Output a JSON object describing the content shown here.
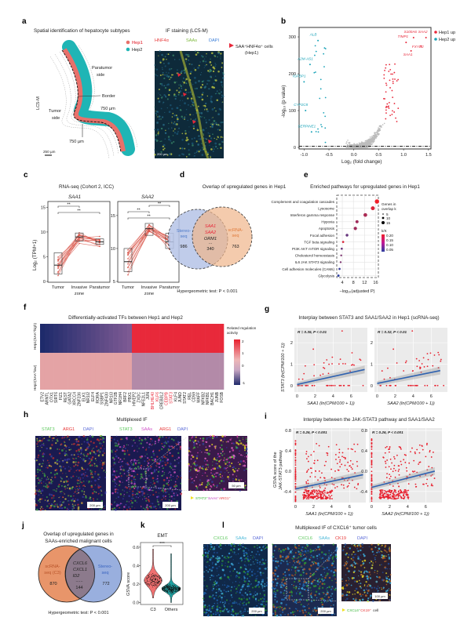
{
  "a": {
    "label": "a",
    "title": "Spatial identification of hepatocyte subtypes",
    "legend": [
      "Hep1",
      "Hep2"
    ],
    "paratumor": [
      "Paratumor",
      "side"
    ],
    "border": "Border",
    "tumor": [
      "Tumor",
      "side"
    ],
    "dist1": "750 µm",
    "dist2": "750 µm",
    "sample": "LC5-M",
    "scale": "250 µm",
    "if_title": "IF staining (LC5-M)",
    "channels": [
      "HNF4α",
      "SAAs",
      "DAPI"
    ],
    "arrow_legend": [
      "SAA⁺HNF4α⁺ cells",
      "(Hep1)"
    ],
    "if_scale": "200 µm",
    "colors": {
      "hep1": "#e8706a",
      "hep2": "#1fb5b5"
    }
  },
  "b": {
    "label": "b",
    "ylabel": "-log₁₀ (p value)",
    "xlabel": "Log₂ (fold change)",
    "legend": [
      "Hep1 up",
      "Hep2 up"
    ],
    "xticks": [
      "-1.0",
      "-0.5",
      "0.0",
      "0.5",
      "1.0",
      "1.5"
    ],
    "yticks": [
      "0",
      "100",
      "200",
      "300"
    ],
    "colors": {
      "up1": "#e8283a",
      "up2": "#1aa3b8",
      "ns": "#bdbdbd"
    }
  },
  "c": {
    "label": "c",
    "title": "RNA-seq (Cohort 2, ICC)",
    "ylabel": "Log₂ (TPM+1)",
    "genes": [
      "SAA1",
      "SAA2"
    ],
    "xcats": [
      "Tumor",
      "Invasive",
      "Paratumor"
    ],
    "zone": "zone",
    "sig": "**",
    "yticks1": [
      "0",
      "5",
      "10",
      "15"
    ],
    "yticks2": [
      "5",
      "10",
      "15"
    ]
  },
  "d": {
    "label": "d",
    "title": "Overlap of upregulated genes in Hep1",
    "left": [
      "Stereo-",
      "seq"
    ],
    "left_n": "986",
    "right": [
      "scRNA-",
      "seq"
    ],
    "right_n": "763",
    "genes": [
      "SAA1",
      "SAA2",
      "ORM1",
      "..."
    ],
    "overlap_n": "340",
    "test": "Hypergeometric test: P < 0.001"
  },
  "e": {
    "label": "e",
    "title": "Enriched pathways for upregulated genes in Hep1",
    "xlabel": "−log₁₀(adjusted P)",
    "xticks": [
      "4",
      "8",
      "12",
      "16"
    ],
    "size_legend_title": [
      "Genes in",
      "overlap k"
    ],
    "size_legend": [
      "5",
      "10",
      "15"
    ],
    "color_legend_title": "k/K",
    "color_legend": [
      "0.20",
      "0.15",
      "0.10",
      "0.05"
    ]
  },
  "f": {
    "label": "f",
    "title": "Differentially-activated TFs between Hep1 and Hep2",
    "rows": [
      "Hep1(SAA^high)",
      "Hep2(SAA^low)"
    ],
    "legend_title": [
      "Related regulation",
      "activity"
    ],
    "legend_ticks": [
      "2",
      "1",
      "0",
      "-1"
    ]
  },
  "g": {
    "label": "g",
    "title": "Interplay between STAT3 and SAA1/SAA2 in Hep1 (scRNA-seq)",
    "ylabel": "STAT3 (ln(CPM/100 + 1))",
    "xlabels": [
      "SAA1 (ln(CPM/100 + 1))",
      "SAA2 (ln(CPM/100 + 1))"
    ],
    "stats": [
      "R = 0.35, P < 0.01",
      "R = 0.32, P < 0.01"
    ],
    "yticks": [
      "0",
      "1",
      "2"
    ],
    "xticks": [
      "0",
      "2",
      "4",
      "6"
    ]
  },
  "h": {
    "label": "h",
    "title": "Multiplexed IF",
    "channels1": [
      "STAT3",
      "ARG1",
      "DAPI"
    ],
    "channels2": [
      "STAT3",
      "SAAs",
      "ARG1",
      "DAPI"
    ],
    "scale1": "200 µm",
    "scale2": "200 µm",
    "scale3": "50 µm",
    "legend": [
      "STAT3⁺",
      "SAAs⁺",
      "ARG1⁺"
    ]
  },
  "i": {
    "label": "i",
    "title": "Interplay between the JAK-STAT3 pathway and SAA1/SAA2",
    "ylabel": [
      "GSVA score of the",
      "JAK-STAT3 pathway"
    ],
    "xlabels": [
      "SAA1 (ln(CPM/100 + 1))",
      "SAA2 (ln(CPM/100 + 1))"
    ],
    "stats": [
      "R = 0.26, P < 0.001",
      "R = 0.26, P < 0.001"
    ],
    "yticks": [
      "-0.4",
      "0.0",
      "0.4",
      "0.8"
    ],
    "xticks": [
      "0",
      "2",
      "4",
      "6"
    ]
  },
  "j": {
    "label": "j",
    "title": [
      "Overlap of upregulated genes in",
      "SAAs-enriched malignant cells"
    ],
    "left": [
      "scRNA-",
      "seq (C3)"
    ],
    "left_n": "870",
    "right": [
      "Stereo-",
      "seq"
    ],
    "right_n": "772",
    "genes": [
      "CXCL6",
      "CXCL1",
      "ID2",
      "......"
    ],
    "overlap_n": "144",
    "test": "Hypergeometric test: P < 0.001"
  },
  "k": {
    "label": "k",
    "title": "EMT",
    "ylabel": "GSVA score",
    "xcats": [
      "C3",
      "Others"
    ],
    "yticks": [
      "0.0",
      "0.2",
      "0.4",
      "0.6"
    ],
    "sig": "***"
  },
  "l": {
    "label": "l",
    "title": "Multiplexed IF of CXCL6⁺ tumor cells",
    "channels1": [
      "CXCL6",
      "SAAs",
      "DAPI"
    ],
    "channels2": [
      "CXCL6",
      "SAAs",
      "CK19",
      "DAPI"
    ],
    "scale1": "200 µm",
    "scale2": "200 µm",
    "scale3": "100 µm",
    "legend": [
      "CXCL6⁺",
      "CK19⁺",
      "cell"
    ]
  },
  "chart_data": [
    {
      "panel": "b",
      "type": "scatter",
      "xlim": [
        -1.1,
        1.55
      ],
      "ylim": [
        0,
        320
      ],
      "threshold_y": 0,
      "labeled_points": [
        {
          "gene": "ALB",
          "x": -0.72,
          "y": 290,
          "group": "Hep2 up"
        },
        {
          "gene": "A2M-AS1",
          "x": -0.88,
          "y": 225,
          "group": "Hep2 up"
        },
        {
          "gene": "IGFBP1",
          "x": -1.0,
          "y": 178,
          "group": "Hep2 up"
        },
        {
          "gene": "CYP2C8",
          "x": -0.97,
          "y": 100,
          "group": "Hep2 up"
        },
        {
          "gene": "SERPINE1",
          "x": -0.85,
          "y": 42,
          "group": "Hep2 up"
        },
        {
          "gene": "TIMP1",
          "x": 1.05,
          "y": 285,
          "group": "Hep1 up"
        },
        {
          "gene": "S100A6",
          "x": 1.2,
          "y": 298,
          "group": "Hep1 up"
        },
        {
          "gene": "SAA2",
          "x": 1.45,
          "y": 298,
          "group": "Hep1 up"
        },
        {
          "gene": "SAA1",
          "x": 1.15,
          "y": 262,
          "group": "Hep1 up"
        },
        {
          "gene": "FXYD2",
          "x": 1.35,
          "y": 275,
          "group": "Hep1 up"
        }
      ]
    },
    {
      "panel": "c",
      "type": "box",
      "series": [
        {
          "gene": "SAA1",
          "medians": [
            3.3,
            9.0,
            8.0
          ],
          "q1": [
            1.5,
            8.2,
            7.5
          ],
          "q3": [
            5.8,
            9.8,
            8.6
          ]
        },
        {
          "gene": "SAA2",
          "medians": [
            8.0,
            13.0,
            11.0
          ],
          "q1": [
            6.5,
            12.0,
            10.0
          ],
          "q3": [
            10.0,
            13.8,
            12.3
          ]
        }
      ]
    },
    {
      "panel": "e",
      "type": "dot",
      "categories": [
        "Complement and coagulation cascades",
        "Lysosome",
        "Interferon gamma response",
        "Hypoxia",
        "Apoptosis",
        "Focal adhesion",
        "TGF beta signaling",
        "PI3K AKT mTOR signaling",
        "Cholesterol homeostasis",
        "IL6 JAK STAT3 signaling",
        "Cell adhesion molecules (CAMs)",
        "Glycolysis"
      ],
      "neglog10_padj": [
        16.5,
        15,
        12.3,
        9.3,
        8.7,
        5.7,
        4.3,
        3.8,
        3.6,
        3.4,
        3.0,
        2.6
      ],
      "k": [
        15,
        13,
        12,
        9,
        10,
        7,
        4,
        4,
        3,
        3,
        4,
        5
      ],
      "kK": [
        0.22,
        0.2,
        0.16,
        0.15,
        0.15,
        0.1,
        0.2,
        0.1,
        0.12,
        0.12,
        0.06,
        0.05
      ],
      "xlim": [
        2,
        17
      ]
    },
    {
      "panel": "f",
      "type": "heatmap",
      "columns": [
        "ETV2",
        "ARNTL",
        "OTX1",
        "SIRT6",
        "FIZ1",
        "REST",
        "GATA2",
        "XRCC4",
        "ZNF236",
        "ELK1",
        "NR1I2",
        "ELF4",
        "RORA",
        "SSBP1",
        "ZNF430",
        "NR1I3",
        "GTF2B",
        "NR1H4",
        "BRF2",
        "PBX1",
        "HIVEP2",
        "ZXDC",
        "NFE2L1",
        "JUN",
        "BHLHE40",
        "KLF6",
        "CREB3L2",
        "CEBPB",
        "STAT3",
        "KLF4",
        "JUND",
        "STAT2",
        "REL",
        "CD59",
        "MAFF",
        "NFKB2",
        "NFKB1",
        "BACH1",
        "JUNB",
        "FOSB"
      ],
      "highlighted": [
        "BHLHE40",
        "KLF6",
        "CEBPB",
        "STAT3"
      ],
      "hep1_left_range": [
        -1,
        -0.2
      ],
      "hep1_right": 2,
      "hep2_left": 0.9,
      "hep2_right": -0.1,
      "color_range": [
        -1,
        2
      ]
    },
    {
      "panel": "g",
      "type": "scatter",
      "fits": [
        {
          "x": [
            0,
            7.5
          ],
          "y": [
            0.05,
            0.75
          ]
        },
        {
          "x": [
            0,
            7
          ],
          "y": [
            0.1,
            0.7
          ]
        }
      ],
      "xlim": [
        -0.3,
        7.8
      ],
      "ylim": [
        -0.3,
        2.7
      ]
    },
    {
      "panel": "i",
      "type": "scatter",
      "fits": [
        {
          "x": [
            0,
            7.5
          ],
          "y": [
            -0.35,
            -0.07
          ]
        },
        {
          "x": [
            0,
            7
          ],
          "y": [
            -0.32,
            0.0
          ]
        }
      ],
      "xlim": [
        -0.3,
        7.8
      ],
      "ylim": [
        -0.62,
        0.85
      ]
    },
    {
      "panel": "k",
      "type": "violin",
      "categories": [
        "C3",
        "Others"
      ],
      "medians": [
        0.24,
        0.15
      ],
      "ranges": [
        [
          0.05,
          0.58
        ],
        [
          0.0,
          0.53
        ]
      ],
      "ylim": [
        -0.02,
        0.65
      ]
    }
  ]
}
